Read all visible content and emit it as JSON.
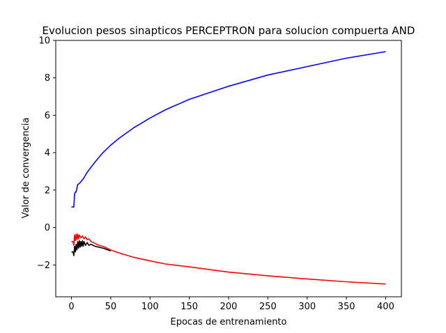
{
  "chart_data": {
    "type": "line",
    "title": "Evolucion pesos sinapticos PERCEPTRON para solucion compuerta AND",
    "xlabel": "Epocas de entrenamiento",
    "ylabel": "Valor de convergencia",
    "xlim": [
      -20,
      420
    ],
    "ylim": [
      -3.7,
      10.0
    ],
    "xticks": [
      0,
      50,
      100,
      150,
      200,
      250,
      300,
      350,
      400
    ],
    "yticks": [
      -2,
      0,
      2,
      4,
      6,
      8,
      10
    ],
    "grid": false,
    "legend": "none",
    "series": [
      {
        "color": "#0000ff",
        "x": [
          0,
          1,
          2,
          3,
          4,
          5,
          6,
          8,
          10,
          15,
          20,
          30,
          40,
          50,
          60,
          80,
          100,
          120,
          150,
          200,
          250,
          300,
          350,
          400
        ],
        "y": [
          1.1,
          1.1,
          1.1,
          1.1,
          1.8,
          1.9,
          1.9,
          2.3,
          2.35,
          2.6,
          2.95,
          3.5,
          4.0,
          4.4,
          4.75,
          5.35,
          5.85,
          6.3,
          6.85,
          7.55,
          8.15,
          8.6,
          9.05,
          9.4
        ]
      },
      {
        "color": "#000000",
        "x": [
          0,
          1,
          2,
          3,
          4,
          5,
          6,
          7,
          8,
          9,
          10,
          11,
          12,
          13,
          14,
          15,
          16,
          18,
          20,
          22,
          25,
          30,
          35,
          40,
          50
        ],
        "y": [
          -1.3,
          -1.3,
          -1.3,
          -1.5,
          -1.0,
          -1.3,
          -0.9,
          -1.2,
          -0.75,
          -1.1,
          -0.7,
          -1.05,
          -0.75,
          -1.0,
          -0.7,
          -1.0,
          -0.75,
          -0.95,
          -0.8,
          -0.95,
          -0.9,
          -1.0,
          -1.05,
          -1.1,
          -1.25
        ]
      },
      {
        "color": "#ff0000",
        "x": [
          0,
          1,
          2,
          3,
          4,
          5,
          6,
          7,
          8,
          9,
          10,
          12,
          14,
          16,
          18,
          20,
          22,
          25,
          30,
          35,
          40,
          50,
          60,
          80,
          100,
          120,
          150,
          200,
          250,
          300,
          350,
          400
        ],
        "y": [
          -0.75,
          -0.75,
          -0.75,
          -0.95,
          -0.4,
          -0.7,
          -0.35,
          -0.65,
          -0.35,
          -0.6,
          -0.4,
          -0.55,
          -0.45,
          -0.6,
          -0.5,
          -0.65,
          -0.6,
          -0.75,
          -0.85,
          -0.95,
          -1.0,
          -1.2,
          -1.35,
          -1.6,
          -1.78,
          -1.95,
          -2.1,
          -2.38,
          -2.58,
          -2.75,
          -2.9,
          -3.02
        ]
      }
    ]
  }
}
